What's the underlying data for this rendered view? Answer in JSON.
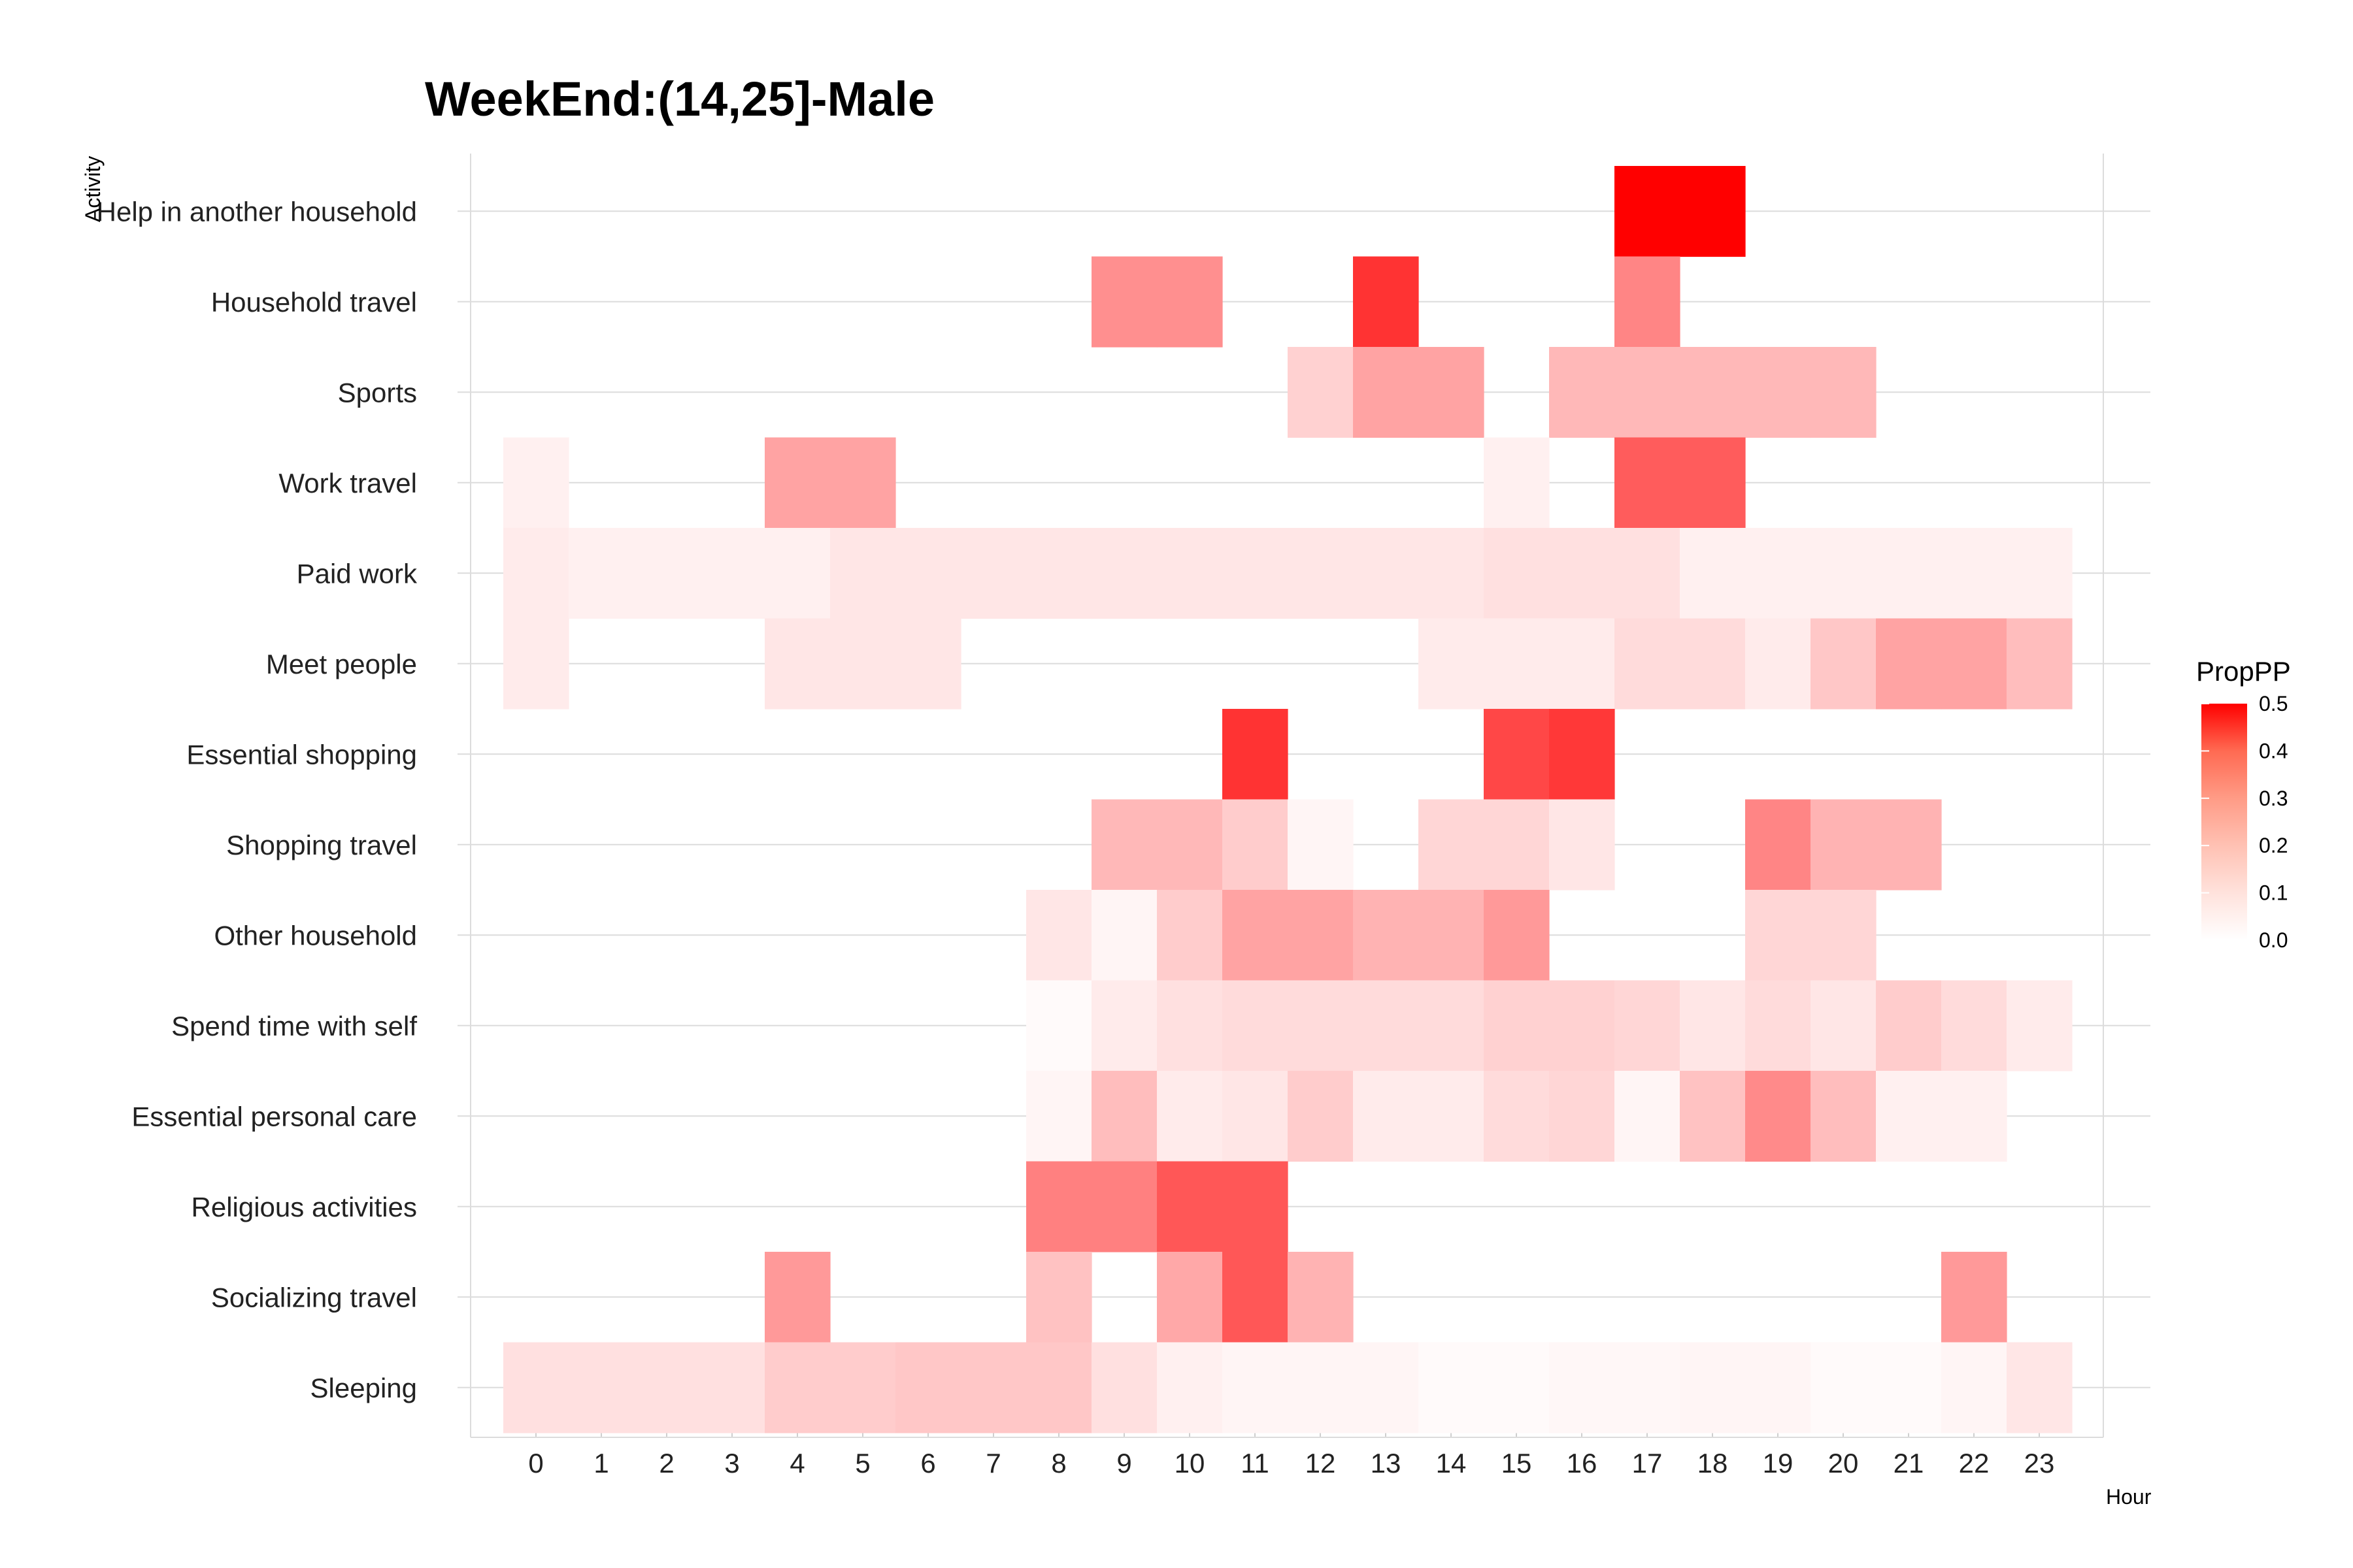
{
  "chart_data": {
    "type": "heatmap",
    "title": "WeekEnd:(14,25]-Male",
    "xlabel": "Hour",
    "ylabel": "Activity",
    "x": [
      "0",
      "1",
      "2",
      "3",
      "4",
      "5",
      "6",
      "7",
      "8",
      "9",
      "10",
      "11",
      "12",
      "13",
      "14",
      "15",
      "16",
      "17",
      "18",
      "19",
      "20",
      "21",
      "22",
      "23"
    ],
    "y": [
      "Help in another household",
      "Household travel",
      "Sports",
      "Work travel",
      "Paid work",
      "Meet people",
      "Essential shopping",
      "Shopping travel",
      "Other household",
      "Spend time with self",
      "Essential personal care",
      "Religious activities",
      "Socializing travel",
      "Sleeping"
    ],
    "values": [
      [
        null,
        null,
        null,
        null,
        null,
        null,
        null,
        null,
        null,
        null,
        null,
        null,
        null,
        null,
        null,
        null,
        null,
        0.5,
        0.5,
        null,
        null,
        null,
        null,
        null
      ],
      [
        null,
        null,
        null,
        null,
        null,
        null,
        null,
        null,
        null,
        0.22,
        0.22,
        null,
        null,
        0.4,
        null,
        null,
        null,
        0.24,
        null,
        null,
        null,
        null,
        null,
        null
      ],
      [
        null,
        null,
        null,
        null,
        null,
        null,
        null,
        null,
        null,
        null,
        null,
        null,
        0.09,
        0.18,
        0.18,
        null,
        0.14,
        0.14,
        0.14,
        0.14,
        0.14,
        null,
        null,
        null
      ],
      [
        0.03,
        null,
        null,
        null,
        0.18,
        0.18,
        null,
        null,
        null,
        null,
        null,
        null,
        null,
        null,
        null,
        0.03,
        null,
        0.32,
        0.32,
        null,
        null,
        null,
        null,
        null
      ],
      [
        0.04,
        0.03,
        0.03,
        0.03,
        0.03,
        0.05,
        0.05,
        0.05,
        0.05,
        0.05,
        0.05,
        0.05,
        0.05,
        0.05,
        0.05,
        0.06,
        0.06,
        0.06,
        0.03,
        0.03,
        0.03,
        0.03,
        0.03,
        0.03
      ],
      [
        0.04,
        null,
        null,
        null,
        0.05,
        0.05,
        0.05,
        null,
        null,
        null,
        null,
        null,
        null,
        null,
        0.04,
        0.04,
        0.04,
        0.07,
        0.07,
        0.04,
        0.11,
        0.18,
        0.18,
        0.13
      ],
      [
        null,
        null,
        null,
        null,
        null,
        null,
        null,
        null,
        null,
        null,
        null,
        0.4,
        null,
        null,
        null,
        0.36,
        0.39,
        null,
        null,
        null,
        null,
        null,
        null,
        null
      ],
      [
        null,
        null,
        null,
        null,
        null,
        null,
        null,
        null,
        null,
        0.14,
        0.14,
        0.1,
        0.02,
        null,
        0.08,
        0.08,
        0.05,
        null,
        null,
        0.24,
        0.15,
        0.15,
        null,
        null
      ],
      [
        null,
        null,
        null,
        null,
        null,
        null,
        null,
        null,
        0.05,
        0.02,
        0.1,
        0.18,
        0.18,
        0.15,
        0.15,
        0.2,
        null,
        null,
        null,
        0.08,
        0.08,
        null,
        null,
        null
      ],
      [
        null,
        null,
        null,
        null,
        null,
        null,
        null,
        null,
        0.01,
        0.04,
        0.06,
        0.07,
        0.07,
        0.07,
        0.07,
        0.09,
        0.09,
        0.08,
        0.05,
        0.07,
        0.05,
        0.1,
        0.07,
        0.04
      ],
      [
        null,
        null,
        null,
        null,
        null,
        null,
        null,
        null,
        0.02,
        0.13,
        0.04,
        0.05,
        0.1,
        0.04,
        0.04,
        0.07,
        0.08,
        0.02,
        0.12,
        0.23,
        0.13,
        0.03,
        0.03,
        null
      ],
      [
        null,
        null,
        null,
        null,
        null,
        null,
        null,
        null,
        0.25,
        0.25,
        0.33,
        0.33,
        null,
        null,
        null,
        null,
        null,
        null,
        null,
        null,
        null,
        null,
        null,
        null
      ],
      [
        null,
        null,
        null,
        null,
        0.2,
        null,
        null,
        null,
        0.12,
        null,
        0.17,
        0.33,
        0.15,
        null,
        null,
        null,
        null,
        null,
        null,
        null,
        null,
        null,
        0.2,
        null
      ],
      [
        0.06,
        0.06,
        0.06,
        0.06,
        0.1,
        0.1,
        0.11,
        0.11,
        0.11,
        0.06,
        0.03,
        0.02,
        0.02,
        0.02,
        0.01,
        0.01,
        0.015,
        0.015,
        0.02,
        0.02,
        0.01,
        0.01,
        0.02,
        0.05
      ]
    ],
    "color_scale": {
      "name": "PropPP",
      "low": "#ffffff",
      "high": "#ff0000",
      "min": 0,
      "max": 0.5,
      "ticks": [
        "0.0",
        "0.1",
        "0.2",
        "0.3",
        "0.4",
        "0.5"
      ]
    },
    "grid": true,
    "legend_position": "right"
  }
}
